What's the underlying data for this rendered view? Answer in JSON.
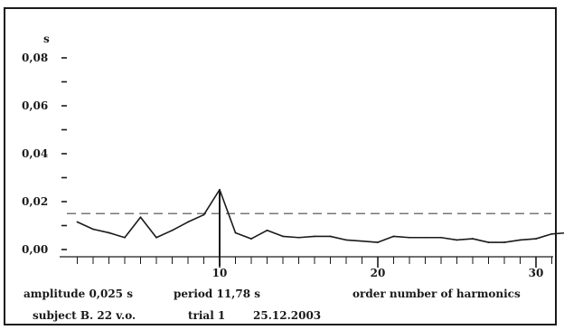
{
  "chart_data": {
    "type": "line",
    "ylabel": "s",
    "xlabel": "order number of harmonics",
    "xlim": [
      0,
      32.5
    ],
    "ylim": [
      -0.003,
      0.09
    ],
    "y_ticks_major": [
      0.0,
      0.02,
      0.04,
      0.06,
      0.08
    ],
    "y_tick_labels": [
      "0,00",
      "0,02",
      "0,04",
      "0,06",
      "0,08"
    ],
    "y_ticks_minor": [
      0.01,
      0.03,
      0.05,
      0.07
    ],
    "x_ticks": [
      10,
      20,
      30
    ],
    "x_tick_labels": [
      "10",
      "20",
      "30"
    ],
    "grid": false,
    "series": [
      {
        "x": [
          1,
          2,
          3,
          4,
          5,
          6,
          7,
          8,
          9,
          10,
          11,
          12,
          13,
          14,
          15,
          16,
          17,
          18,
          19,
          20,
          21,
          22,
          23,
          24,
          25,
          26,
          27,
          28,
          29,
          30,
          31,
          32
        ],
        "values": [
          0.0115,
          0.0085,
          0.007,
          0.005,
          0.0135,
          0.005,
          0.008,
          0.0115,
          0.0145,
          0.025,
          0.007,
          0.0045,
          0.008,
          0.0055,
          0.005,
          0.0055,
          0.0055,
          0.004,
          0.0035,
          0.003,
          0.0055,
          0.005,
          0.005,
          0.005,
          0.004,
          0.0045,
          0.003,
          0.003,
          0.004,
          0.0045,
          0.0065,
          0.007
        ],
        "color": "#1a1a1a"
      }
    ],
    "threshold": {
      "value": 0.015,
      "style": "dashed",
      "color": "#777777"
    },
    "marker_line": {
      "x": 10,
      "value": 0.025
    }
  },
  "caption": {
    "amplitude": "amplitude  0,025 s",
    "period": "period 11,78 s",
    "subject": "subject  B.   22 v.o.",
    "trial": "trial 1",
    "date": "25.12.2003"
  }
}
